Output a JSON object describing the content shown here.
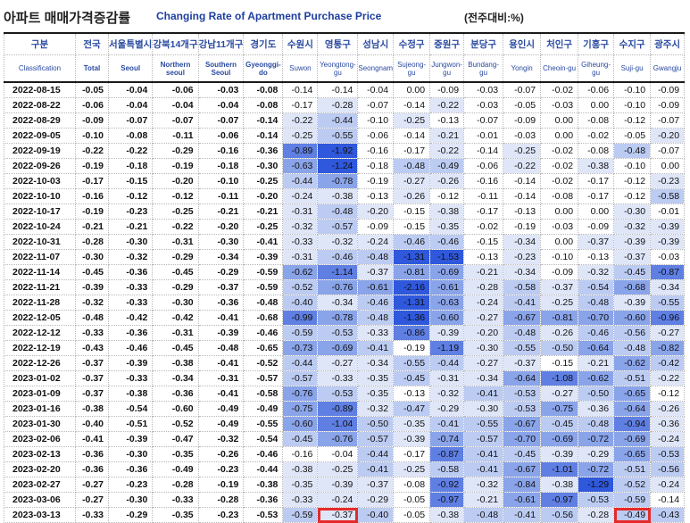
{
  "title": {
    "korean": "아파트 매매가격증감률",
    "english": "Changing Rate of Apartment Purchase Price",
    "unit": "(전주대비:%)"
  },
  "columns": [
    {
      "ko": "구분",
      "en": "Classification"
    },
    {
      "ko": "전국",
      "en": "Total"
    },
    {
      "ko": "서울특별시",
      "en": "Seoul"
    },
    {
      "ko": "강북14개구",
      "en": "Northern seoul"
    },
    {
      "ko": "강남11개구",
      "en": "Southern Seoul"
    },
    {
      "ko": "경기도",
      "en": "Gyeonggi-do"
    },
    {
      "ko": "수원시",
      "en": "Suwon"
    },
    {
      "ko": "영통구",
      "en": "Yeongtong-gu"
    },
    {
      "ko": "성남시",
      "en": "Seongnam"
    },
    {
      "ko": "수정구",
      "en": "Sujeong-gu"
    },
    {
      "ko": "중원구",
      "en": "Jungwon-gu"
    },
    {
      "ko": "분당구",
      "en": "Bundang-gu"
    },
    {
      "ko": "용인시",
      "en": "Yongin"
    },
    {
      "ko": "처인구",
      "en": "Cheoin-gu"
    },
    {
      "ko": "기흥구",
      "en": "Giheung-gu"
    },
    {
      "ko": "수지구",
      "en": "Suji-gu"
    },
    {
      "ko": "광주시",
      "en": "Gwangju"
    }
  ],
  "rows": [
    {
      "date": "2022-08-15",
      "values": [
        "-0.05",
        "-0.04",
        "-0.06",
        "-0.03",
        "-0.08",
        "-0.14",
        "-0.14",
        "-0.04",
        "0.00",
        "-0.09",
        "-0.03",
        "-0.07",
        "-0.02",
        "-0.06",
        "-0.10",
        "-0.09"
      ]
    },
    {
      "date": "2022-08-22",
      "values": [
        "-0.06",
        "-0.04",
        "-0.04",
        "-0.04",
        "-0.08",
        "-0.17",
        "-0.28",
        "-0.07",
        "-0.14",
        "-0.22",
        "-0.03",
        "-0.05",
        "-0.03",
        "0.00",
        "-0.10",
        "-0.09"
      ]
    },
    {
      "date": "2022-08-29",
      "values": [
        "-0.09",
        "-0.07",
        "-0.07",
        "-0.07",
        "-0.14",
        "-0.22",
        "-0.44",
        "-0.10",
        "-0.25",
        "-0.13",
        "-0.07",
        "-0.09",
        "0.00",
        "-0.08",
        "-0.12",
        "-0.07"
      ]
    },
    {
      "date": "2022-09-05",
      "values": [
        "-0.10",
        "-0.08",
        "-0.11",
        "-0.06",
        "-0.14",
        "-0.25",
        "-0.55",
        "-0.06",
        "-0.14",
        "-0.21",
        "-0.01",
        "-0.03",
        "0.00",
        "-0.02",
        "-0.05",
        "-0.20"
      ]
    },
    {
      "date": "2022-09-19",
      "values": [
        "-0.22",
        "-0.22",
        "-0.29",
        "-0.16",
        "-0.36",
        "-0.89",
        "-1.92",
        "-0.16",
        "-0.17",
        "-0.22",
        "-0.14",
        "-0.25",
        "-0.02",
        "-0.08",
        "-0.48",
        "-0.07"
      ]
    },
    {
      "date": "2022-09-26",
      "values": [
        "-0.19",
        "-0.18",
        "-0.19",
        "-0.18",
        "-0.30",
        "-0.63",
        "-1.24",
        "-0.18",
        "-0.48",
        "-0.49",
        "-0.06",
        "-0.22",
        "-0.02",
        "-0.38",
        "-0.10",
        "0.00"
      ]
    },
    {
      "date": "2022-10-03",
      "values": [
        "-0.17",
        "-0.15",
        "-0.20",
        "-0.10",
        "-0.25",
        "-0.44",
        "-0.78",
        "-0.19",
        "-0.27",
        "-0.26",
        "-0.16",
        "-0.14",
        "-0.02",
        "-0.17",
        "-0.12",
        "-0.23"
      ]
    },
    {
      "date": "2022-10-10",
      "values": [
        "-0.16",
        "-0.12",
        "-0.12",
        "-0.11",
        "-0.20",
        "-0.24",
        "-0.38",
        "-0.13",
        "-0.26",
        "-0.12",
        "-0.11",
        "-0.14",
        "-0.08",
        "-0.17",
        "-0.12",
        "-0.58"
      ]
    },
    {
      "date": "2022-10-17",
      "values": [
        "-0.19",
        "-0.23",
        "-0.25",
        "-0.21",
        "-0.21",
        "-0.31",
        "-0.48",
        "-0.20",
        "-0.15",
        "-0.38",
        "-0.17",
        "-0.13",
        "0.00",
        "0.00",
        "-0.30",
        "-0.01"
      ]
    },
    {
      "date": "2022-10-24",
      "values": [
        "-0.21",
        "-0.21",
        "-0.22",
        "-0.20",
        "-0.25",
        "-0.32",
        "-0.57",
        "-0.09",
        "-0.15",
        "-0.35",
        "-0.02",
        "-0.19",
        "-0.03",
        "-0.09",
        "-0.32",
        "-0.39"
      ]
    },
    {
      "date": "2022-10-31",
      "values": [
        "-0.28",
        "-0.30",
        "-0.31",
        "-0.30",
        "-0.41",
        "-0.33",
        "-0.32",
        "-0.24",
        "-0.46",
        "-0.46",
        "-0.15",
        "-0.34",
        "0.00",
        "-0.37",
        "-0.39",
        "-0.39"
      ]
    },
    {
      "date": "2022-11-07",
      "values": [
        "-0.30",
        "-0.32",
        "-0.29",
        "-0.34",
        "-0.39",
        "-0.31",
        "-0.46",
        "-0.48",
        "-1.31",
        "-1.53",
        "-0.13",
        "-0.23",
        "-0.10",
        "-0.13",
        "-0.37",
        "-0.03"
      ]
    },
    {
      "date": "2022-11-14",
      "values": [
        "-0.45",
        "-0.36",
        "-0.45",
        "-0.29",
        "-0.59",
        "-0.62",
        "-1.14",
        "-0.37",
        "-0.81",
        "-0.69",
        "-0.21",
        "-0.34",
        "-0.09",
        "-0.32",
        "-0.45",
        "-0.87"
      ]
    },
    {
      "date": "2022-11-21",
      "values": [
        "-0.39",
        "-0.33",
        "-0.29",
        "-0.37",
        "-0.59",
        "-0.52",
        "-0.76",
        "-0.61",
        "-2.16",
        "-0.61",
        "-0.28",
        "-0.58",
        "-0.37",
        "-0.54",
        "-0.68",
        "-0.34"
      ]
    },
    {
      "date": "2022-11-28",
      "values": [
        "-0.32",
        "-0.33",
        "-0.30",
        "-0.36",
        "-0.48",
        "-0.40",
        "-0.34",
        "-0.46",
        "-1.31",
        "-0.63",
        "-0.24",
        "-0.41",
        "-0.25",
        "-0.48",
        "-0.39",
        "-0.55"
      ]
    },
    {
      "date": "2022-12-05",
      "values": [
        "-0.48",
        "-0.42",
        "-0.42",
        "-0.41",
        "-0.68",
        "-0.99",
        "-0.78",
        "-0.48",
        "-1.36",
        "-0.60",
        "-0.27",
        "-0.67",
        "-0.81",
        "-0.70",
        "-0.60",
        "-0.96"
      ]
    },
    {
      "date": "2022-12-12",
      "values": [
        "-0.33",
        "-0.36",
        "-0.31",
        "-0.39",
        "-0.46",
        "-0.59",
        "-0.53",
        "-0.33",
        "-0.86",
        "-0.39",
        "-0.20",
        "-0.48",
        "-0.26",
        "-0.46",
        "-0.56",
        "-0.27"
      ]
    },
    {
      "date": "2022-12-19",
      "values": [
        "-0.43",
        "-0.46",
        "-0.45",
        "-0.48",
        "-0.65",
        "-0.73",
        "-0.69",
        "-0.41",
        "-0.19",
        "-1.19",
        "-0.30",
        "-0.55",
        "-0.50",
        "-0.64",
        "-0.48",
        "-0.82"
      ]
    },
    {
      "date": "2022-12-26",
      "values": [
        "-0.37",
        "-0.39",
        "-0.38",
        "-0.41",
        "-0.52",
        "-0.44",
        "-0.27",
        "-0.34",
        "-0.55",
        "-0.44",
        "-0.27",
        "-0.37",
        "-0.15",
        "-0.21",
        "-0.62",
        "-0.42"
      ]
    },
    {
      "date": "2023-01-02",
      "values": [
        "-0.37",
        "-0.33",
        "-0.34",
        "-0.31",
        "-0.57",
        "-0.57",
        "-0.33",
        "-0.35",
        "-0.45",
        "-0.31",
        "-0.34",
        "-0.64",
        "-1.08",
        "-0.62",
        "-0.51",
        "-0.22"
      ]
    },
    {
      "date": "2023-01-09",
      "values": [
        "-0.37",
        "-0.38",
        "-0.36",
        "-0.41",
        "-0.58",
        "-0.76",
        "-0.53",
        "-0.35",
        "-0.13",
        "-0.32",
        "-0.41",
        "-0.53",
        "-0.27",
        "-0.50",
        "-0.65",
        "-0.12"
      ]
    },
    {
      "date": "2023-01-16",
      "values": [
        "-0.38",
        "-0.54",
        "-0.60",
        "-0.49",
        "-0.49",
        "-0.75",
        "-0.89",
        "-0.32",
        "-0.47",
        "-0.29",
        "-0.30",
        "-0.53",
        "-0.75",
        "-0.36",
        "-0.64",
        "-0.26"
      ]
    },
    {
      "date": "2023-01-30",
      "values": [
        "-0.40",
        "-0.51",
        "-0.52",
        "-0.49",
        "-0.55",
        "-0.60",
        "-1.04",
        "-0.50",
        "-0.35",
        "-0.41",
        "-0.55",
        "-0.67",
        "-0.45",
        "-0.48",
        "-0.94",
        "-0.36"
      ]
    },
    {
      "date": "2023-02-06",
      "values": [
        "-0.41",
        "-0.39",
        "-0.47",
        "-0.32",
        "-0.54",
        "-0.45",
        "-0.76",
        "-0.57",
        "-0.39",
        "-0.74",
        "-0.57",
        "-0.70",
        "-0.69",
        "-0.72",
        "-0.69",
        "-0.24"
      ]
    },
    {
      "date": "2023-02-13",
      "values": [
        "-0.36",
        "-0.30",
        "-0.35",
        "-0.26",
        "-0.46",
        "-0.16",
        "-0.04",
        "-0.44",
        "-0.17",
        "-0.87",
        "-0.41",
        "-0.45",
        "-0.39",
        "-0.29",
        "-0.65",
        "-0.53"
      ]
    },
    {
      "date": "2023-02-20",
      "values": [
        "-0.36",
        "-0.36",
        "-0.49",
        "-0.23",
        "-0.44",
        "-0.38",
        "-0.25",
        "-0.41",
        "-0.25",
        "-0.58",
        "-0.41",
        "-0.67",
        "-1.01",
        "-0.72",
        "-0.51",
        "-0.56"
      ]
    },
    {
      "date": "2023-02-27",
      "values": [
        "-0.27",
        "-0.23",
        "-0.28",
        "-0.19",
        "-0.38",
        "-0.35",
        "-0.39",
        "-0.37",
        "-0.08",
        "-0.92",
        "-0.32",
        "-0.84",
        "-0.38",
        "-1.29",
        "-0.52",
        "-0.24"
      ]
    },
    {
      "date": "2023-03-06",
      "values": [
        "-0.27",
        "-0.30",
        "-0.33",
        "-0.28",
        "-0.36",
        "-0.33",
        "-0.24",
        "-0.29",
        "-0.05",
        "-0.97",
        "-0.21",
        "-0.61",
        "-0.97",
        "-0.53",
        "-0.59",
        "-0.14"
      ]
    },
    {
      "date": "2023-03-13",
      "values": [
        "-0.33",
        "-0.29",
        "-0.35",
        "-0.23",
        "-0.53",
        "-0.59",
        "-0.37",
        "-0.40",
        "-0.05",
        "-0.38",
        "-0.48",
        "-0.41",
        "-0.56",
        "-0.28",
        "-0.49",
        "-0.43"
      ]
    }
  ],
  "highlighted_cells": [
    {
      "date": "2023-03-13",
      "column": "영통구",
      "value": "-0.37"
    },
    {
      "date": "2023-03-13",
      "column": "수지구",
      "value": "-0.49"
    }
  ],
  "colors": {
    "title_english": "#1f3f9f",
    "header_text": "#2a4aa0",
    "heat_scale": [
      "#ffffff",
      "#dfe6f8",
      "#bccbf2",
      "#8aa4ea",
      "#5f7fe3",
      "#2f58dc"
    ],
    "highlight_border": "#e52a2a"
  }
}
